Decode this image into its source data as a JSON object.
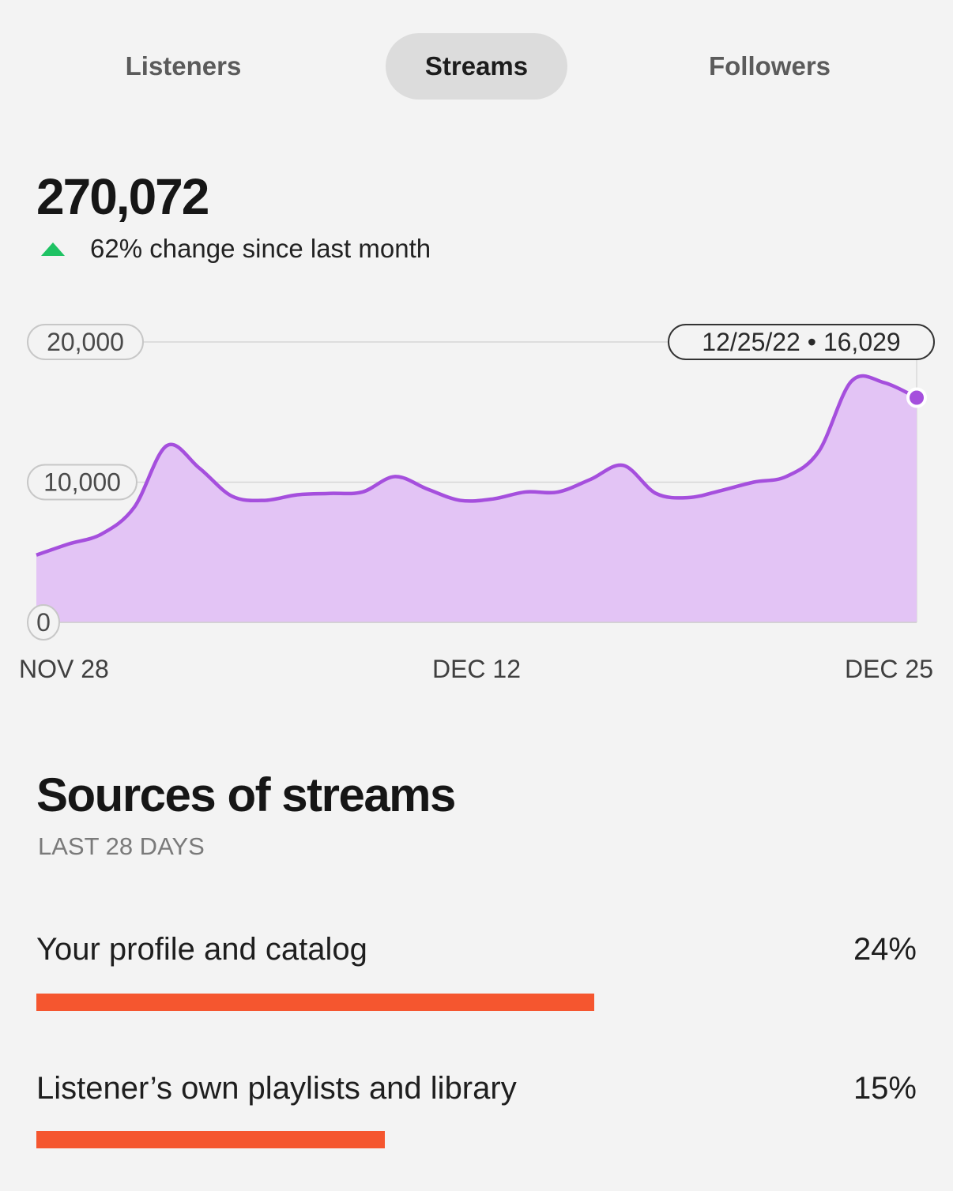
{
  "tabs": {
    "listeners": "Listeners",
    "streams": "Streams",
    "followers": "Followers",
    "active": "streams"
  },
  "summary": {
    "total": "270,072",
    "change_text": "62% change since last month",
    "change_direction": "up-arrow-icon",
    "change_color": "#1ec263"
  },
  "chart_data": {
    "type": "area",
    "y_ticks": [
      "20,000",
      "10,000",
      "0"
    ],
    "x_ticks": [
      "NOV 28",
      "DEC 12",
      "DEC 25"
    ],
    "ylim": [
      0,
      20000
    ],
    "xlim": [
      "2022-11-28",
      "2022-12-25"
    ],
    "grid": true,
    "color": "#a54fdd",
    "fill_color": "#e3c4f5",
    "tooltip": "12/25/22 • 16,029",
    "series": [
      {
        "x": [
          "2022-11-28",
          "2022-11-29",
          "2022-11-30",
          "2022-12-01",
          "2022-12-02",
          "2022-12-03",
          "2022-12-04",
          "2022-12-05",
          "2022-12-06",
          "2022-12-07",
          "2022-12-08",
          "2022-12-09",
          "2022-12-10",
          "2022-12-11",
          "2022-12-12",
          "2022-12-13",
          "2022-12-14",
          "2022-12-15",
          "2022-12-16",
          "2022-12-17",
          "2022-12-18",
          "2022-12-19",
          "2022-12-20",
          "2022-12-21",
          "2022-12-22",
          "2022-12-23",
          "2022-12-24",
          "2022-12-25"
        ],
        "values": [
          4800,
          5600,
          6300,
          8200,
          12600,
          11000,
          9000,
          8700,
          9100,
          9200,
          9300,
          10400,
          9500,
          8700,
          8800,
          9300,
          9300,
          10200,
          11200,
          9200,
          8900,
          9400,
          10000,
          10400,
          12200,
          17200,
          17100,
          16029
        ]
      }
    ]
  },
  "sources": {
    "title": "Sources of streams",
    "subtitle": "LAST 28 DAYS",
    "bar_color": "#f5562f",
    "items": [
      {
        "label": "Your profile and catalog",
        "percent": "24%",
        "value": 24
      },
      {
        "label": "Listener’s own playlists and library",
        "percent": "15%",
        "value": 15
      }
    ]
  }
}
